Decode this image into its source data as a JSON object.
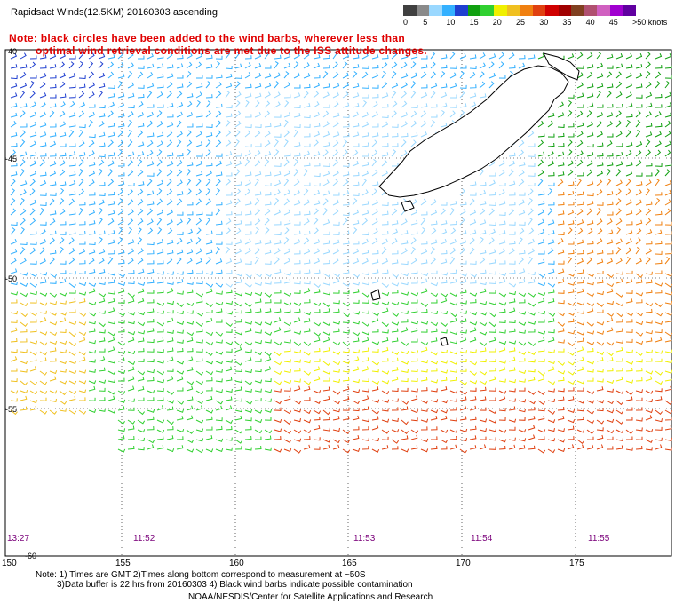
{
  "title": "Rapidsact Winds(12.5KM) 20160303 ascending",
  "note": {
    "line1": "Note: black circles have been added to the wind barbs, wherever less than",
    "line2": "optimal wind retrieval conditions are met due to the ISS attitude changes."
  },
  "legend": {
    "labels": [
      "0",
      "5",
      "10",
      "15",
      "20",
      "25",
      "30",
      "35",
      "40",
      "45",
      ">50 knots"
    ],
    "colors": [
      "#404040",
      "#8a8a8a",
      "#9ad8ff",
      "#33b0ff",
      "#1f3fd0",
      "#10a010",
      "#30d030",
      "#f0f000",
      "#f0c020",
      "#f08010",
      "#e04010",
      "#d00000",
      "#a00000",
      "#804020",
      "#b05070",
      "#d060c0",
      "#a000d0",
      "#6000a0"
    ]
  },
  "axes": {
    "longitudes": [
      "150",
      "155",
      "160",
      "165",
      "170",
      "175"
    ],
    "latitudes": [
      "-40",
      "-45",
      "-50",
      "-55",
      "-60"
    ]
  },
  "times": [
    "13:27",
    "11:52",
    "11:53",
    "11:54",
    "11:55"
  ],
  "footer": {
    "line1": "Note: 1) Times are GMT 2)Times along bottom correspond to measurement at ~50S",
    "line2": "3)Data buffer is 22 hrs from 20160303 4) Black wind barbs indicate possible contamination",
    "line3": "NOAA/NESDIS/Center for Satellite Applications and Research"
  },
  "map": {
    "land_label": "New Zealand",
    "land_color": "#ffffff",
    "coast_color": "#000000",
    "grid_color": "#000000"
  }
}
